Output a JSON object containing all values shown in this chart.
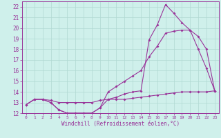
{
  "x_values": [
    0,
    1,
    2,
    3,
    4,
    5,
    6,
    7,
    8,
    9,
    10,
    11,
    12,
    13,
    14,
    15,
    16,
    17,
    18,
    19,
    20,
    21,
    22,
    23
  ],
  "line1": [
    12.8,
    13.3,
    13.3,
    13.0,
    12.3,
    12.0,
    12.0,
    12.0,
    12.0,
    12.5,
    13.3,
    13.5,
    13.8,
    14.0,
    14.1,
    18.9,
    20.3,
    22.2,
    21.4,
    20.5,
    19.8,
    18.0,
    16.2,
    14.1
  ],
  "line2": [
    12.8,
    13.3,
    13.3,
    13.0,
    12.3,
    12.0,
    12.0,
    12.0,
    12.0,
    12.5,
    14.0,
    14.5,
    15.0,
    15.5,
    16.0,
    17.3,
    18.3,
    19.5,
    19.7,
    19.8,
    19.8,
    19.2,
    18.0,
    14.1
  ],
  "line3": [
    12.8,
    13.3,
    13.3,
    13.2,
    13.0,
    13.0,
    13.0,
    13.0,
    13.0,
    13.2,
    13.3,
    13.3,
    13.3,
    13.4,
    13.5,
    13.6,
    13.7,
    13.8,
    13.9,
    14.0,
    14.0,
    14.0,
    14.0,
    14.1
  ],
  "line_color": "#993399",
  "bg_color": "#cff0eb",
  "grid_color": "#b0d8d2",
  "xlabel": "Windchill (Refroidissement éolien,°C)",
  "ylabel_ticks": [
    12,
    13,
    14,
    15,
    16,
    17,
    18,
    19,
    20,
    21,
    22
  ],
  "ylim": [
    12,
    22.5
  ],
  "xlim": [
    -0.5,
    23.5
  ]
}
